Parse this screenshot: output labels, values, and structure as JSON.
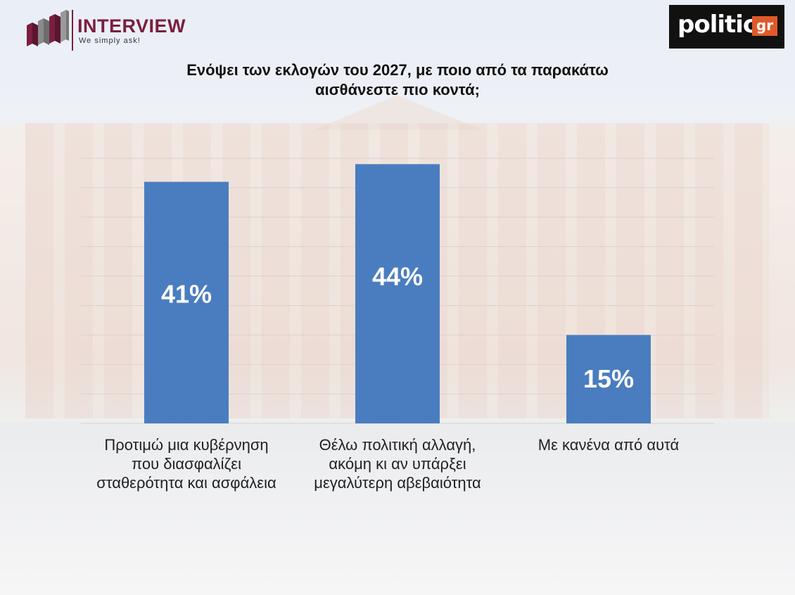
{
  "logos": {
    "interview": {
      "name": "INTERVIEW",
      "tagline": "We simply ask!",
      "accent": "#7a1f3d"
    },
    "politic": {
      "name": "politic",
      "suffix": "gr",
      "accent": "#e0592a"
    }
  },
  "chart_data": {
    "type": "bar",
    "title_lines": [
      "Ενόψει των εκλογών του 2027, με ποιο από τα παρακάτω",
      "αισθάνεστε πιο κοντά;"
    ],
    "categories": [
      [
        "Προτιμώ μια κυβέρνηση",
        "που διασφαλίζει",
        "σταθερότητα και ασφάλεια"
      ],
      [
        "Θέλω πολιτική αλλαγή,",
        "ακόμη κι αν υπάρξει",
        "μεγαλύτερη αβεβαιότητα"
      ],
      [
        "Με κανένα από αυτά"
      ]
    ],
    "values": [
      41,
      44,
      15
    ],
    "data_labels": [
      "41%",
      "44%",
      "15%"
    ],
    "ylim": [
      0,
      45
    ],
    "grid": true,
    "bar_color": "#4a7dbf"
  }
}
